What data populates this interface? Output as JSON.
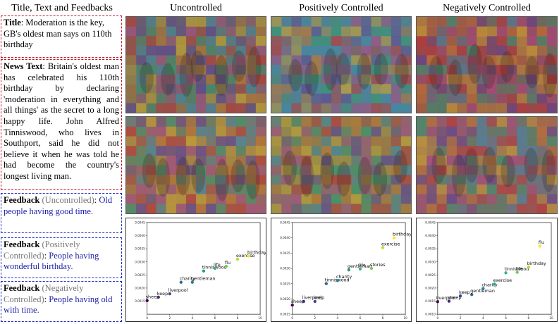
{
  "headers": {
    "left": "Title, Text and Feedbacks",
    "uncontrolled": "Uncontrolled",
    "positive": "Positively Controlled",
    "negative": "Negatively Controlled"
  },
  "title_box": {
    "label": "Title",
    "text": ": Moderation is the key, GB's oldest man says on 110th birthday"
  },
  "news_box": {
    "label": "News Text",
    "text": ": Britain's oldest man has celebrated his 110th birthday by declaring 'moderation in everything and all things' as the secret to a long happy life. John Alfred Tinniswood, who lives in Southport, said he did not believe it when he was told he had become the country's longest living man."
  },
  "feedbacks": [
    {
      "label": "Feedback",
      "condition": " (Uncontrolled)",
      "sep": ": ",
      "text": "Old people having good time."
    },
    {
      "label": "Feedback",
      "condition": " (Positively Controlled)",
      "sep": ": ",
      "text": "People having wonderful birthday."
    },
    {
      "label": "Feedback",
      "condition": " (Negatively Controlled)",
      "sep": ": ",
      "text": "People having old with time."
    }
  ],
  "colors": {
    "red_border": "#c0142c",
    "blue_border": "#1f2fc0",
    "feedback_text": "#1c1fa8",
    "condition_text": "#777777"
  },
  "chart_data": [
    {
      "type": "scatter",
      "panel": "Uncontrolled",
      "xlim": [
        0,
        10
      ],
      "ylim": [
        0.001,
        0.0045
      ],
      "x_ticks": [
        "0",
        "2",
        "4",
        "6",
        "8",
        "10"
      ],
      "y_ticks": [
        "0.0015",
        "0.0020",
        "0.0025",
        "0.0030",
        "0.0035",
        "0.0040",
        "0.0045"
      ],
      "points": [
        {
          "label": "sheep",
          "x": 0,
          "y": 0.00152
        },
        {
          "label": "keep",
          "x": 1,
          "y": 0.00165
        },
        {
          "label": "liverpool",
          "x": 2,
          "y": 0.00178
        },
        {
          "label": "charity",
          "x": 3,
          "y": 0.00222
        },
        {
          "label": "gentleman",
          "x": 4,
          "y": 0.00222
        },
        {
          "label": "tinniswood",
          "x": 5,
          "y": 0.00265
        },
        {
          "label": "life",
          "x": 6,
          "y": 0.00275
        },
        {
          "label": "flu",
          "x": 7,
          "y": 0.00283
        },
        {
          "label": "exercise",
          "x": 8,
          "y": 0.0031
        },
        {
          "label": "birthday",
          "x": 9,
          "y": 0.00322
        }
      ]
    },
    {
      "type": "scatter",
      "panel": "Positively Controlled",
      "xlim": [
        0,
        10
      ],
      "ylim": [
        0.0015,
        0.0045
      ],
      "x_ticks": [
        "0",
        "2",
        "4",
        "6",
        "8",
        "10"
      ],
      "y_ticks": [
        "0.0015",
        "0.0020",
        "0.0025",
        "0.0030",
        "0.0035",
        "0.0040",
        "0.0045"
      ],
      "points": [
        {
          "label": "sheep",
          "x": 0,
          "y": 0.0018
        },
        {
          "label": "liverpool",
          "x": 1,
          "y": 0.00192
        },
        {
          "label": "keep",
          "x": 2,
          "y": 0.00192
        },
        {
          "label": "tinniswood",
          "x": 3,
          "y": 0.0025
        },
        {
          "label": "charity",
          "x": 4,
          "y": 0.0026
        },
        {
          "label": "gentleman",
          "x": 5,
          "y": 0.00295
        },
        {
          "label": "life",
          "x": 6,
          "y": 0.00298
        },
        {
          "label": "stories",
          "x": 7,
          "y": 0.003
        },
        {
          "label": "exercise",
          "x": 8,
          "y": 0.00368
        },
        {
          "label": "birthday",
          "x": 9,
          "y": 0.004
        }
      ]
    },
    {
      "type": "scatter",
      "panel": "Negatively Controlled",
      "xlim": [
        0,
        10
      ],
      "ylim": [
        0.001,
        0.0045
      ],
      "x_ticks": [
        "0",
        "2",
        "4",
        "6",
        "8",
        "10"
      ],
      "y_ticks": [
        "0.0010",
        "0.0015",
        "0.0020",
        "0.0025",
        "0.0030",
        "0.0035",
        "0.0040",
        "0.0045"
      ],
      "points": [
        {
          "label": "liverpool",
          "x": 0,
          "y": 0.00148
        },
        {
          "label": "sheep",
          "x": 1,
          "y": 0.0015
        },
        {
          "label": "keep",
          "x": 2,
          "y": 0.0017
        },
        {
          "label": "gentleman",
          "x": 3,
          "y": 0.00175
        },
        {
          "label": "charity",
          "x": 4,
          "y": 0.00198
        },
        {
          "label": "exercise",
          "x": 5,
          "y": 0.00215
        },
        {
          "label": "tinniswood",
          "x": 6,
          "y": 0.00258
        },
        {
          "label": "life",
          "x": 7,
          "y": 0.0026
        },
        {
          "label": "birthday",
          "x": 8,
          "y": 0.0028
        },
        {
          "label": "flu",
          "x": 9,
          "y": 0.0036
        }
      ]
    }
  ]
}
